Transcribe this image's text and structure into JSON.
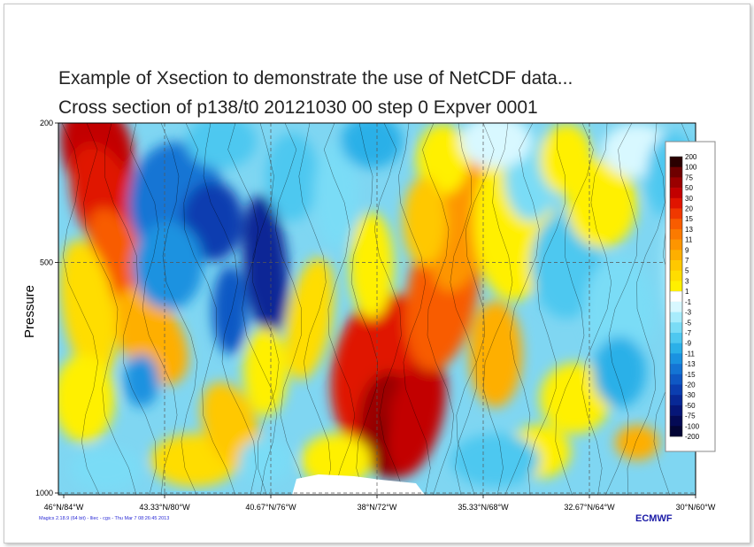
{
  "chart_data": {
    "type": "heatmap",
    "title_lines": [
      "Example of Xsection to demonstrate the use of NetCDF data...",
      "Cross section of p138/t0 20121030 00 step 0 Expver 0001"
    ],
    "ylabel": "Pressure",
    "xlabel": "",
    "y_axis": {
      "reversed": true,
      "range": [
        200,
        1000
      ],
      "ticks": [
        "200",
        "500",
        "1000"
      ]
    },
    "x_ticks": [
      "46°N/84°W",
      "43.33°N/80°W",
      "40.67°N/76°W",
      "38°N/72°W",
      "35.33°N/68°W",
      "32.67°N/64°W",
      "30°N/60°W"
    ],
    "grid": true,
    "legend": {
      "position": "right",
      "levels": [
        "200",
        "100",
        "75",
        "50",
        "30",
        "20",
        "15",
        "13",
        "11",
        "9",
        "7",
        "5",
        "3",
        "1",
        "-1",
        "-3",
        "-5",
        "-7",
        "-9",
        "-11",
        "-13",
        "-15",
        "-20",
        "-30",
        "-50",
        "-75",
        "-100",
        "-200"
      ],
      "colors": [
        "#2a0000",
        "#6e0000",
        "#9a0000",
        "#c20000",
        "#e01400",
        "#f03800",
        "#f85c00",
        "#fb7a00",
        "#fd9500",
        "#feaf00",
        "#ffc800",
        "#ffdd00",
        "#fff000",
        "#ffffff",
        "#d8f8ff",
        "#a8ecfc",
        "#7adcf6",
        "#4ec8f0",
        "#2bb0e8",
        "#1a92e0",
        "#1474d4",
        "#0f58c4",
        "#0b3eb0",
        "#082896",
        "#061678",
        "#040a55",
        "#030535"
      ]
    },
    "footer": "Magics 2.18.9 (64 bit) - lliec - cgs - Thu Mar  7 08:26:45 2013",
    "logo": "ECMWF"
  }
}
